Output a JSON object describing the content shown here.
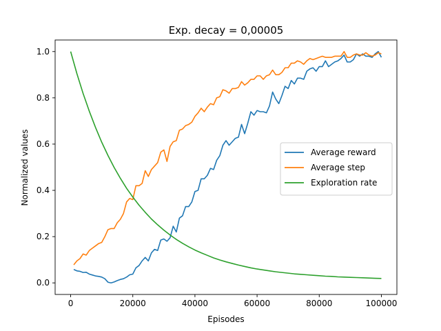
{
  "chart_data": {
    "type": "line",
    "title": "Exp. decay = 0,00005",
    "xlabel": "Episodes",
    "ylabel": "Normalized values",
    "xlim": [
      -5000,
      105000
    ],
    "ylim": [
      -0.05,
      1.05
    ],
    "xticks": [
      0,
      20000,
      40000,
      60000,
      80000,
      100000
    ],
    "xtick_labels": [
      "0",
      "20000",
      "40000",
      "60000",
      "80000",
      "100000"
    ],
    "yticks": [
      0.0,
      0.2,
      0.4,
      0.6,
      0.8,
      1.0
    ],
    "ytick_labels": [
      "0.0",
      "0.2",
      "0.4",
      "0.6",
      "0.8",
      "1.0"
    ],
    "grid": false,
    "legend_position": "center-right",
    "series": [
      {
        "name": "Average reward",
        "color": "#1f77b4",
        "x": [
          1000,
          2000,
          3000,
          4000,
          5000,
          6000,
          7000,
          8000,
          9000,
          10000,
          11000,
          12000,
          13000,
          14000,
          15000,
          16000,
          17000,
          18000,
          19000,
          20000,
          21000,
          22000,
          23000,
          24000,
          25000,
          26000,
          27000,
          28000,
          29000,
          30000,
          31000,
          32000,
          33000,
          34000,
          35000,
          36000,
          37000,
          38000,
          39000,
          40000,
          41000,
          42000,
          43000,
          44000,
          45000,
          46000,
          47000,
          48000,
          49000,
          50000,
          51000,
          52000,
          53000,
          54000,
          55000,
          56000,
          57000,
          58000,
          59000,
          60000,
          61000,
          62000,
          63000,
          64000,
          65000,
          66000,
          67000,
          68000,
          69000,
          70000,
          71000,
          72000,
          73000,
          74000,
          75000,
          76000,
          77000,
          78000,
          79000,
          80000,
          81000,
          82000,
          83000,
          84000,
          85000,
          86000,
          87000,
          88000,
          89000,
          90000,
          91000,
          92000,
          93000,
          94000,
          95000,
          96000,
          97000,
          98000,
          99000,
          100000
        ],
        "values": [
          0.058,
          0.052,
          0.05,
          0.045,
          0.046,
          0.038,
          0.034,
          0.03,
          0.028,
          0.025,
          0.018,
          0.003,
          0.0,
          0.004,
          0.01,
          0.015,
          0.018,
          0.025,
          0.035,
          0.038,
          0.065,
          0.075,
          0.095,
          0.11,
          0.095,
          0.13,
          0.145,
          0.14,
          0.185,
          0.19,
          0.18,
          0.195,
          0.245,
          0.22,
          0.28,
          0.29,
          0.33,
          0.33,
          0.35,
          0.395,
          0.4,
          0.45,
          0.45,
          0.465,
          0.495,
          0.49,
          0.53,
          0.55,
          0.595,
          0.615,
          0.595,
          0.61,
          0.625,
          0.63,
          0.685,
          0.645,
          0.69,
          0.74,
          0.725,
          0.745,
          0.74,
          0.74,
          0.735,
          0.765,
          0.825,
          0.795,
          0.775,
          0.81,
          0.85,
          0.84,
          0.875,
          0.86,
          0.885,
          0.885,
          0.88,
          0.915,
          0.925,
          0.93,
          0.915,
          0.935,
          0.935,
          0.96,
          0.935,
          0.945,
          0.955,
          0.96,
          0.97,
          0.985,
          0.955,
          0.955,
          0.965,
          0.99,
          0.98,
          0.99,
          0.98,
          0.98,
          0.975,
          0.99,
          1.0,
          0.975
        ]
      },
      {
        "name": "Average step",
        "color": "#ff7f0e",
        "x": [
          1000,
          2000,
          3000,
          4000,
          5000,
          6000,
          7000,
          8000,
          9000,
          10000,
          11000,
          12000,
          13000,
          14000,
          15000,
          16000,
          17000,
          18000,
          19000,
          20000,
          21000,
          22000,
          23000,
          24000,
          25000,
          26000,
          27000,
          28000,
          29000,
          30000,
          31000,
          32000,
          33000,
          34000,
          35000,
          36000,
          37000,
          38000,
          39000,
          40000,
          41000,
          42000,
          43000,
          44000,
          45000,
          46000,
          47000,
          48000,
          49000,
          50000,
          51000,
          52000,
          53000,
          54000,
          55000,
          56000,
          57000,
          58000,
          59000,
          60000,
          61000,
          62000,
          63000,
          64000,
          65000,
          66000,
          67000,
          68000,
          69000,
          70000,
          71000,
          72000,
          73000,
          74000,
          75000,
          76000,
          77000,
          78000,
          79000,
          80000,
          81000,
          82000,
          83000,
          84000,
          85000,
          86000,
          87000,
          88000,
          89000,
          90000,
          91000,
          92000,
          93000,
          94000,
          95000,
          96000,
          97000,
          98000,
          99000,
          100000
        ],
        "values": [
          0.078,
          0.095,
          0.105,
          0.125,
          0.12,
          0.14,
          0.15,
          0.16,
          0.17,
          0.175,
          0.2,
          0.23,
          0.235,
          0.235,
          0.26,
          0.275,
          0.3,
          0.35,
          0.365,
          0.36,
          0.42,
          0.42,
          0.43,
          0.485,
          0.46,
          0.49,
          0.505,
          0.52,
          0.565,
          0.575,
          0.525,
          0.59,
          0.61,
          0.615,
          0.66,
          0.665,
          0.68,
          0.685,
          0.695,
          0.72,
          0.735,
          0.755,
          0.74,
          0.76,
          0.775,
          0.77,
          0.8,
          0.805,
          0.835,
          0.83,
          0.82,
          0.84,
          0.84,
          0.845,
          0.87,
          0.855,
          0.865,
          0.88,
          0.88,
          0.895,
          0.895,
          0.88,
          0.895,
          0.9,
          0.92,
          0.9,
          0.9,
          0.91,
          0.93,
          0.93,
          0.95,
          0.95,
          0.96,
          0.955,
          0.945,
          0.96,
          0.97,
          0.965,
          0.97,
          0.975,
          0.98,
          0.975,
          0.975,
          0.975,
          0.98,
          0.98,
          0.98,
          1.0,
          0.975,
          0.975,
          0.985,
          0.99,
          0.985,
          0.985,
          0.995,
          0.985,
          0.98,
          0.985,
          0.995,
          0.99
        ]
      },
      {
        "name": "Exploration rate",
        "color": "#2ca02c",
        "x": [
          0,
          2000,
          4000,
          6000,
          8000,
          10000,
          12000,
          14000,
          16000,
          18000,
          20000,
          22000,
          24000,
          26000,
          28000,
          30000,
          32000,
          34000,
          36000,
          38000,
          40000,
          42000,
          44000,
          46000,
          48000,
          50000,
          52000,
          54000,
          56000,
          58000,
          60000,
          62000,
          64000,
          66000,
          68000,
          70000,
          72000,
          74000,
          76000,
          78000,
          80000,
          82000,
          84000,
          86000,
          88000,
          90000,
          92000,
          94000,
          96000,
          98000,
          100000
        ],
        "values": [
          1.0,
          0.905,
          0.819,
          0.742,
          0.672,
          0.608,
          0.551,
          0.499,
          0.452,
          0.409,
          0.371,
          0.336,
          0.305,
          0.276,
          0.251,
          0.228,
          0.207,
          0.188,
          0.171,
          0.156,
          0.142,
          0.13,
          0.119,
          0.108,
          0.099,
          0.091,
          0.084,
          0.077,
          0.071,
          0.065,
          0.06,
          0.056,
          0.052,
          0.048,
          0.045,
          0.042,
          0.039,
          0.037,
          0.035,
          0.033,
          0.031,
          0.029,
          0.028,
          0.026,
          0.025,
          0.024,
          0.023,
          0.022,
          0.021,
          0.02,
          0.019
        ]
      }
    ]
  }
}
